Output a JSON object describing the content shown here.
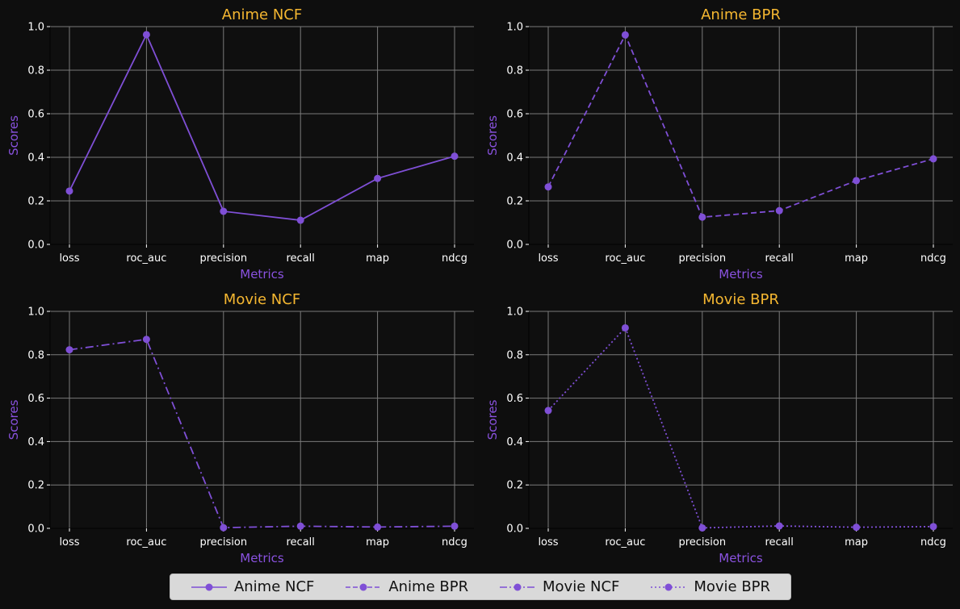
{
  "colors": {
    "background": "#0e0e0e",
    "line": "#7f4fd6",
    "title": "#f5b731",
    "axis_label": "#8a52e0",
    "tick_label": "#ffffff",
    "grid": "#7a7a7a"
  },
  "chart_data": [
    {
      "type": "line",
      "title": "Anime NCF",
      "xlabel": "Metrics",
      "ylabel": "Scores",
      "categories": [
        "loss",
        "roc_auc",
        "precision",
        "recall",
        "map",
        "ndcg"
      ],
      "series": [
        {
          "name": "Anime NCF",
          "linestyle": "solid",
          "values": [
            0.245,
            0.963,
            0.152,
            0.111,
            0.303,
            0.405
          ]
        }
      ],
      "ylim": [
        0,
        1.0
      ],
      "yticks": [
        "0.0",
        "0.2",
        "0.4",
        "0.6",
        "0.8",
        "1.0"
      ],
      "grid": true
    },
    {
      "type": "line",
      "title": "Anime BPR",
      "xlabel": "Metrics",
      "ylabel": "Scores",
      "categories": [
        "loss",
        "roc_auc",
        "precision",
        "recall",
        "map",
        "ndcg"
      ],
      "series": [
        {
          "name": "Anime BPR",
          "linestyle": "dashed",
          "values": [
            0.264,
            0.962,
            0.125,
            0.155,
            0.293,
            0.393
          ]
        }
      ],
      "ylim": [
        0,
        1.0
      ],
      "yticks": [
        "0.0",
        "0.2",
        "0.4",
        "0.6",
        "0.8",
        "1.0"
      ],
      "grid": true
    },
    {
      "type": "line",
      "title": "Movie NCF",
      "xlabel": "Metrics",
      "ylabel": "Scores",
      "categories": [
        "loss",
        "roc_auc",
        "precision",
        "recall",
        "map",
        "ndcg"
      ],
      "series": [
        {
          "name": "Movie NCF",
          "linestyle": "dashdot",
          "values": [
            0.823,
            0.871,
            0.003,
            0.01,
            0.006,
            0.01
          ]
        }
      ],
      "ylim": [
        0,
        1.0
      ],
      "yticks": [
        "0.0",
        "0.2",
        "0.4",
        "0.6",
        "0.8",
        "1.0"
      ],
      "grid": true
    },
    {
      "type": "line",
      "title": "Movie BPR",
      "xlabel": "Metrics",
      "ylabel": "Scores",
      "categories": [
        "loss",
        "roc_auc",
        "precision",
        "recall",
        "map",
        "ndcg"
      ],
      "series": [
        {
          "name": "Movie BPR",
          "linestyle": "dotted",
          "values": [
            0.543,
            0.924,
            0.002,
            0.011,
            0.005,
            0.008
          ]
        }
      ],
      "ylim": [
        0,
        1.0
      ],
      "yticks": [
        "0.0",
        "0.2",
        "0.4",
        "0.6",
        "0.8",
        "1.0"
      ],
      "grid": true
    }
  ],
  "legend": {
    "placement": "bottom-center",
    "items": [
      {
        "label": "Anime NCF",
        "linestyle": "solid"
      },
      {
        "label": "Anime BPR",
        "linestyle": "dashed"
      },
      {
        "label": "Movie NCF",
        "linestyle": "dashdot"
      },
      {
        "label": "Movie BPR",
        "linestyle": "dotted"
      }
    ]
  }
}
